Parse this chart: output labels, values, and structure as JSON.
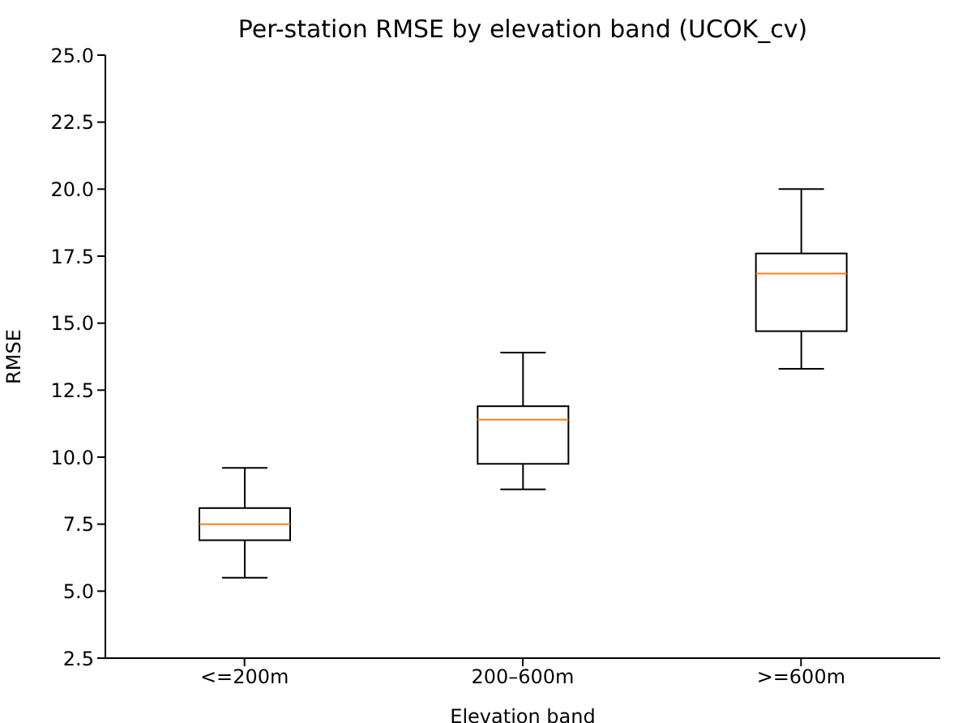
{
  "chart_data": {
    "type": "box",
    "title": "Per-station RMSE by elevation band (UCOK_cv)",
    "xlabel": "Elevation band",
    "ylabel": "RMSE",
    "categories": [
      "<=200m",
      "200–600m",
      ">=600m"
    ],
    "boxes": [
      {
        "low": 5.5,
        "q1": 6.9,
        "median": 7.5,
        "q3": 8.1,
        "high": 9.6
      },
      {
        "low": 8.8,
        "q1": 9.75,
        "median": 11.4,
        "q3": 11.9,
        "high": 13.9
      },
      {
        "low": 13.3,
        "q1": 14.7,
        "median": 16.85,
        "q3": 17.6,
        "high": 20.0
      }
    ],
    "ylim": [
      2.5,
      25
    ],
    "yticks": [
      {
        "value": 2.5,
        "label": "2.5"
      },
      {
        "value": 5,
        "label": "5.0"
      },
      {
        "value": 7.5,
        "label": "7.5"
      },
      {
        "value": 10,
        "label": "10.0"
      },
      {
        "value": 12.5,
        "label": "12.5"
      },
      {
        "value": 15,
        "label": "15.0"
      },
      {
        "value": 17.5,
        "label": "17.5"
      },
      {
        "value": 20,
        "label": "20.0"
      },
      {
        "value": 22.5,
        "label": "22.5"
      },
      {
        "value": 25,
        "label": "25.0"
      }
    ]
  }
}
